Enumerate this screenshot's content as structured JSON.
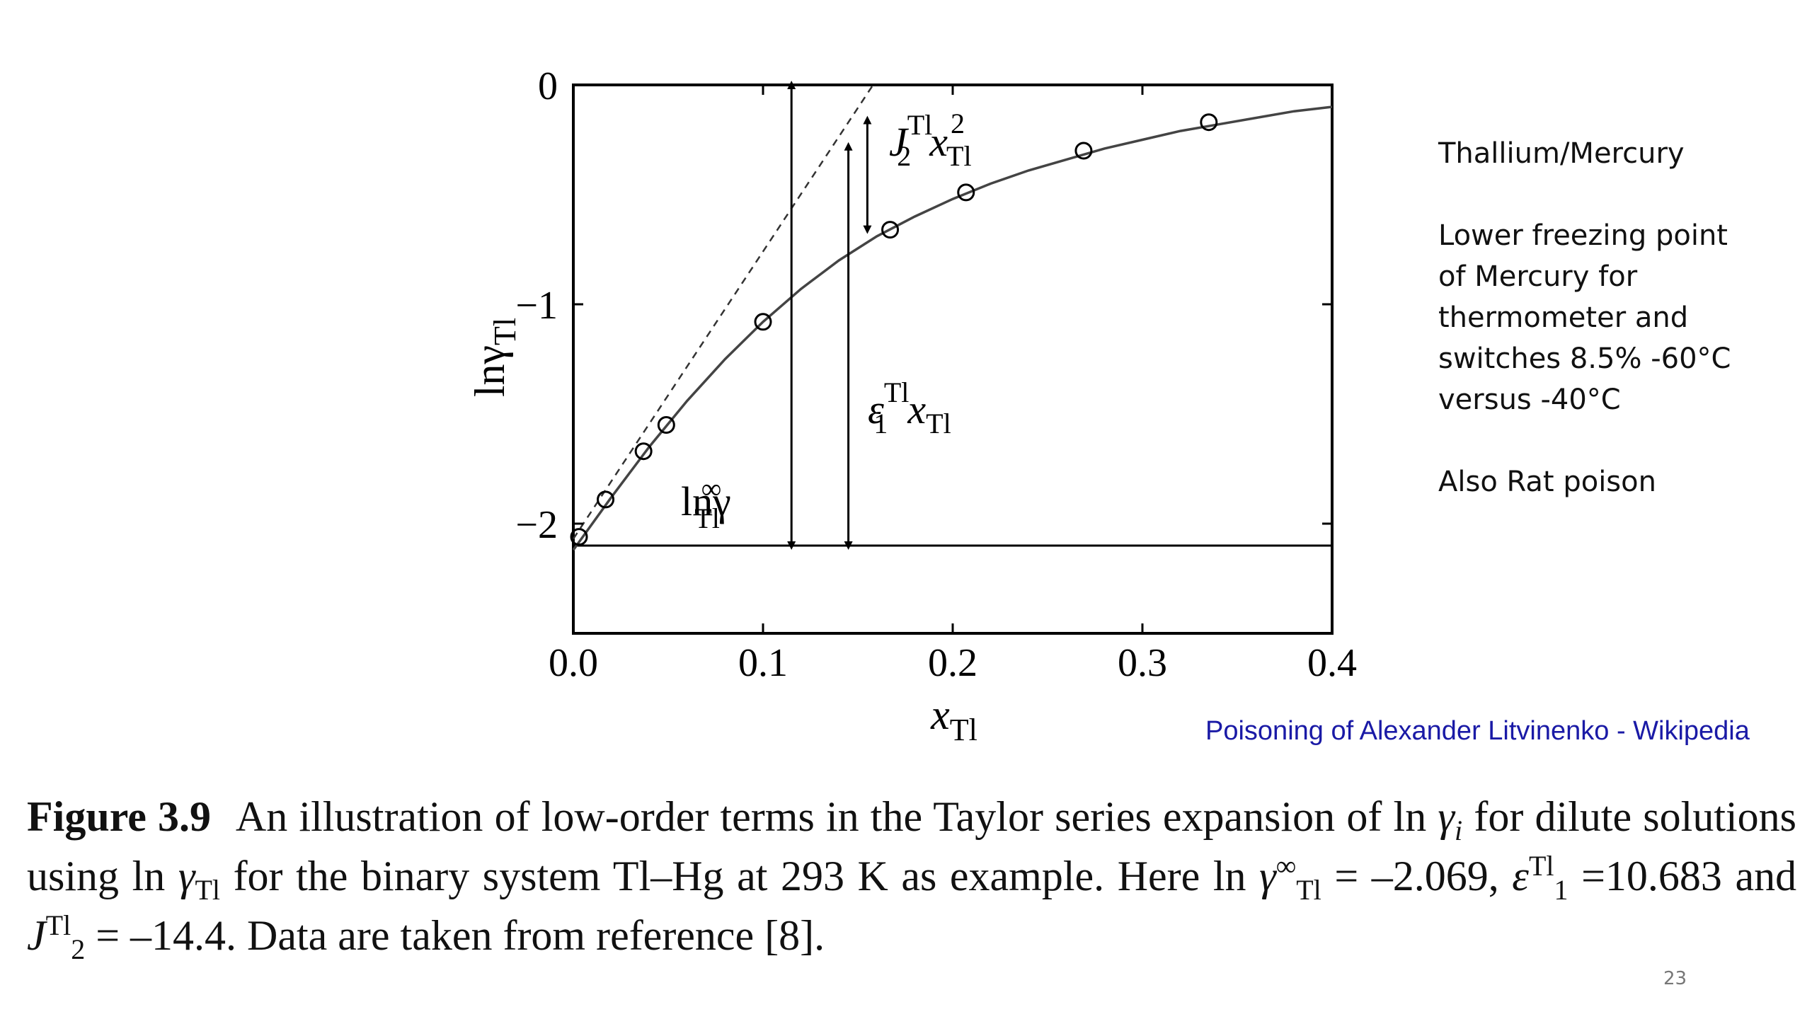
{
  "chart_data": {
    "type": "scatter",
    "x_axis": {
      "label": "x",
      "label_subscript": "Tl",
      "ticks": [
        "0.0",
        "0.1",
        "0.2",
        "0.3",
        "0.4"
      ],
      "range": [
        0.0,
        0.4
      ]
    },
    "y_axis": {
      "label": "lnγ",
      "label_subscript": "Tl",
      "ticks": [
        "0",
        "−1",
        "−2"
      ],
      "range": [
        -2.5,
        0
      ]
    },
    "points": [
      {
        "x": 0.003,
        "y": -2.06
      },
      {
        "x": 0.017,
        "y": -1.89
      },
      {
        "x": 0.037,
        "y": -1.67
      },
      {
        "x": 0.049,
        "y": -1.55
      },
      {
        "x": 0.1,
        "y": -1.08
      },
      {
        "x": 0.167,
        "y": -0.66
      },
      {
        "x": 0.207,
        "y": -0.49
      },
      {
        "x": 0.269,
        "y": -0.3
      },
      {
        "x": 0.335,
        "y": -0.17
      }
    ],
    "fit_curve": {
      "style": "solid",
      "x": [
        0.0,
        0.02,
        0.04,
        0.06,
        0.08,
        0.1,
        0.12,
        0.14,
        0.16,
        0.18,
        0.2,
        0.22,
        0.24,
        0.26,
        0.28,
        0.3,
        0.32,
        0.34,
        0.36,
        0.38,
        0.4
      ],
      "y": [
        -2.12,
        -1.88,
        -1.65,
        -1.44,
        -1.25,
        -1.08,
        -0.93,
        -0.8,
        -0.69,
        -0.6,
        -0.52,
        -0.45,
        -0.39,
        -0.34,
        -0.29,
        -0.25,
        -0.21,
        -0.18,
        -0.15,
        -0.12,
        -0.1
      ]
    },
    "tangent_line": {
      "style": "dashed",
      "x": [
        0.0,
        0.158
      ],
      "y": [
        -2.069,
        0.0
      ]
    },
    "baseline": {
      "y": -2.1
    },
    "annotations": [
      {
        "text": "lnγ",
        "sub": "Tl",
        "sup": "∞"
      },
      {
        "text": "ε",
        "sub": "1",
        "sup": "Tl",
        "tail": "x",
        "tail_sub": "Tl"
      },
      {
        "text": "J",
        "sub": "2",
        "sup": "Tl",
        "tail": "x",
        "tail_sub": "Tl",
        "tail_sup": "2"
      }
    ],
    "arrows": [
      {
        "x": 0.115,
        "y_from": -2.1,
        "y_to": 0.0
      },
      {
        "x": 0.145,
        "y_from": -2.1,
        "y_to": -0.28
      },
      {
        "x": 0.155,
        "y_from": -0.16,
        "y_to": -0.66
      }
    ],
    "grid": false
  },
  "side_notes": {
    "title": "Thallium/Mercury",
    "line1": "Lower freezing point",
    "line2": "of Mercury for",
    "line3": "thermometer and",
    "line4": "switches 8.5% -60°C",
    "line5": "versus -40°C",
    "extra": "Also Rat poison"
  },
  "link": {
    "text": "Poisoning of Alexander Litvinenko - Wikipedia",
    "color": "#1a1aa6"
  },
  "caption": {
    "figure_label": "Figure 3.9",
    "part1": "An illustration of low-order terms in the Taylor series expansion of ln",
    "gamma": "γ",
    "sub_i": "i",
    "part2": "for dilute solutions using ln",
    "sub_tl": "Tl",
    "part3": "for the binary system Tl–Hg at 293 K as example. Here ln",
    "sup_inf": "∞",
    "part4": "= –2.069,",
    "epsilon": "ε",
    "sub_1": "1",
    "sup_tl": "Tl",
    "part5": "=10.683 and",
    "j": "J",
    "sub_2": "2",
    "part6": "= –14.4. Data are taken from reference [8]."
  },
  "page_number": "23"
}
